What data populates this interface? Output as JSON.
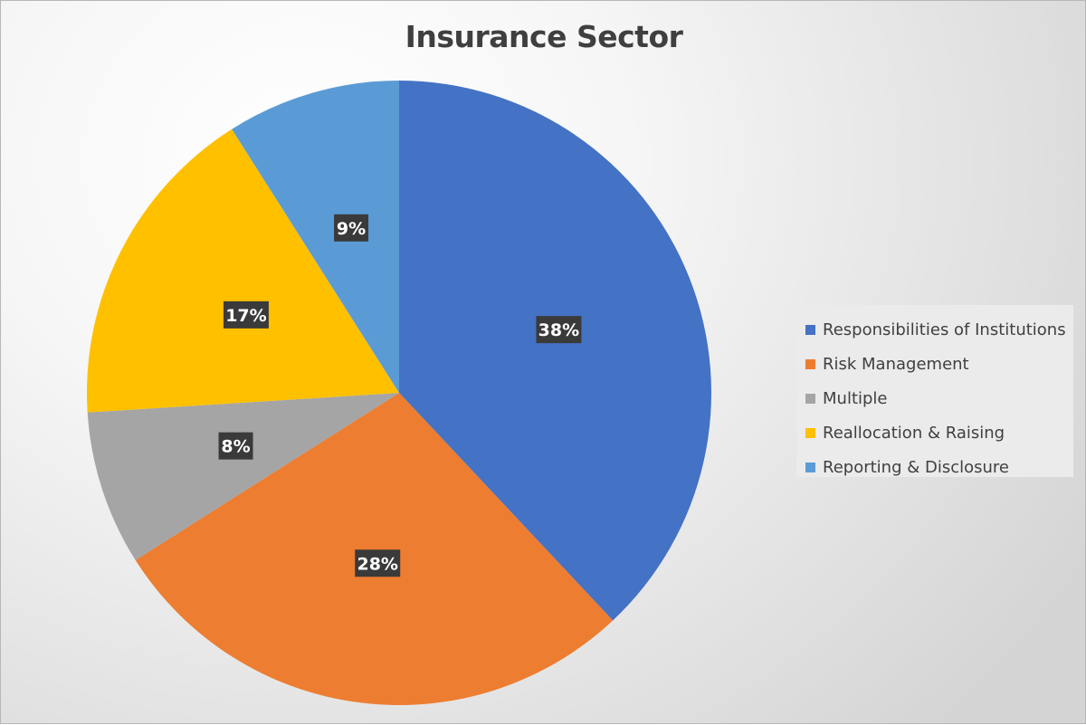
{
  "chart_data": {
    "type": "pie",
    "title": "Insurance Sector",
    "categories": [
      "Responsibilities of Institutions",
      "Risk Management",
      "Multiple",
      "Reallocation & Raising",
      "Reporting & Disclosure"
    ],
    "values": [
      38,
      28,
      8,
      17,
      9
    ],
    "value_labels": [
      "38%",
      "28%",
      "8%",
      "17%",
      "9%"
    ],
    "colors": [
      "#4472c4",
      "#ed7d31",
      "#a5a5a5",
      "#ffc000",
      "#5b9bd5"
    ],
    "start_angle": "12 o'clock",
    "direction": "clockwise",
    "legend_position": "right"
  }
}
